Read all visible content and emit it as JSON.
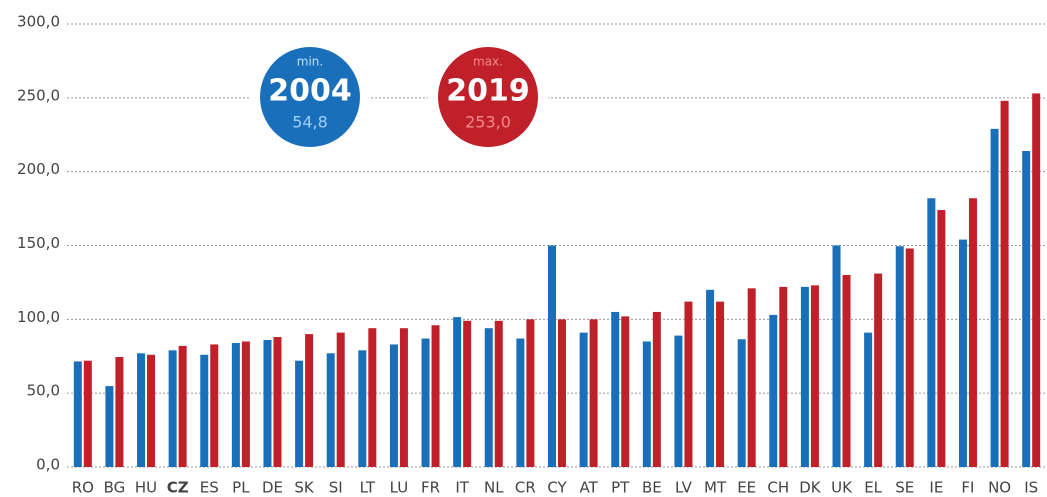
{
  "chart_data": {
    "type": "bar",
    "categories": [
      "RO",
      "BG",
      "HU",
      "CZ",
      "ES",
      "PL",
      "DE",
      "SK",
      "SI",
      "LT",
      "LU",
      "FR",
      "IT",
      "NL",
      "CR",
      "CY",
      "AT",
      "PT",
      "BE",
      "LV",
      "MT",
      "EE",
      "CH",
      "DK",
      "UK",
      "EL",
      "SE",
      "IE",
      "FI",
      "NO",
      "IS"
    ],
    "highlight_index": 3,
    "series": [
      {
        "name": "2004",
        "color": "#1a6fba",
        "values": [
          71.5,
          54.8,
          77,
          79,
          76,
          84,
          86,
          72,
          77,
          79,
          83,
          87,
          101.5,
          94,
          87,
          150,
          91,
          105,
          85,
          89,
          120,
          86.5,
          103,
          122,
          150,
          91,
          149.5,
          182,
          154,
          229,
          214
        ]
      },
      {
        "name": "2019",
        "color": "#c0202a",
        "values": [
          72,
          74.5,
          76,
          82,
          83,
          85,
          88,
          90,
          91,
          94,
          94,
          96,
          99,
          99,
          100,
          100,
          100,
          102,
          105,
          112,
          112,
          121,
          122,
          123,
          130,
          131,
          148,
          174,
          182,
          248,
          253
        ]
      }
    ],
    "annotations": [
      {
        "text": "min.",
        "series": 0,
        "value": 54.8,
        "label": "54,8"
      },
      {
        "text": "max.",
        "series": 1,
        "value": 253.0,
        "label": "253,0"
      }
    ],
    "ylim": [
      0,
      300
    ],
    "yticks": [
      {
        "value": 0,
        "label": "0,0"
      },
      {
        "value": 50,
        "label": "50,0"
      },
      {
        "value": 100,
        "label": "100,0"
      },
      {
        "value": 150,
        "label": "150,0"
      },
      {
        "value": 200,
        "label": "200,0"
      },
      {
        "value": 250,
        "label": "250,0"
      },
      {
        "value": 300,
        "label": "300,0"
      }
    ],
    "grid": true
  }
}
